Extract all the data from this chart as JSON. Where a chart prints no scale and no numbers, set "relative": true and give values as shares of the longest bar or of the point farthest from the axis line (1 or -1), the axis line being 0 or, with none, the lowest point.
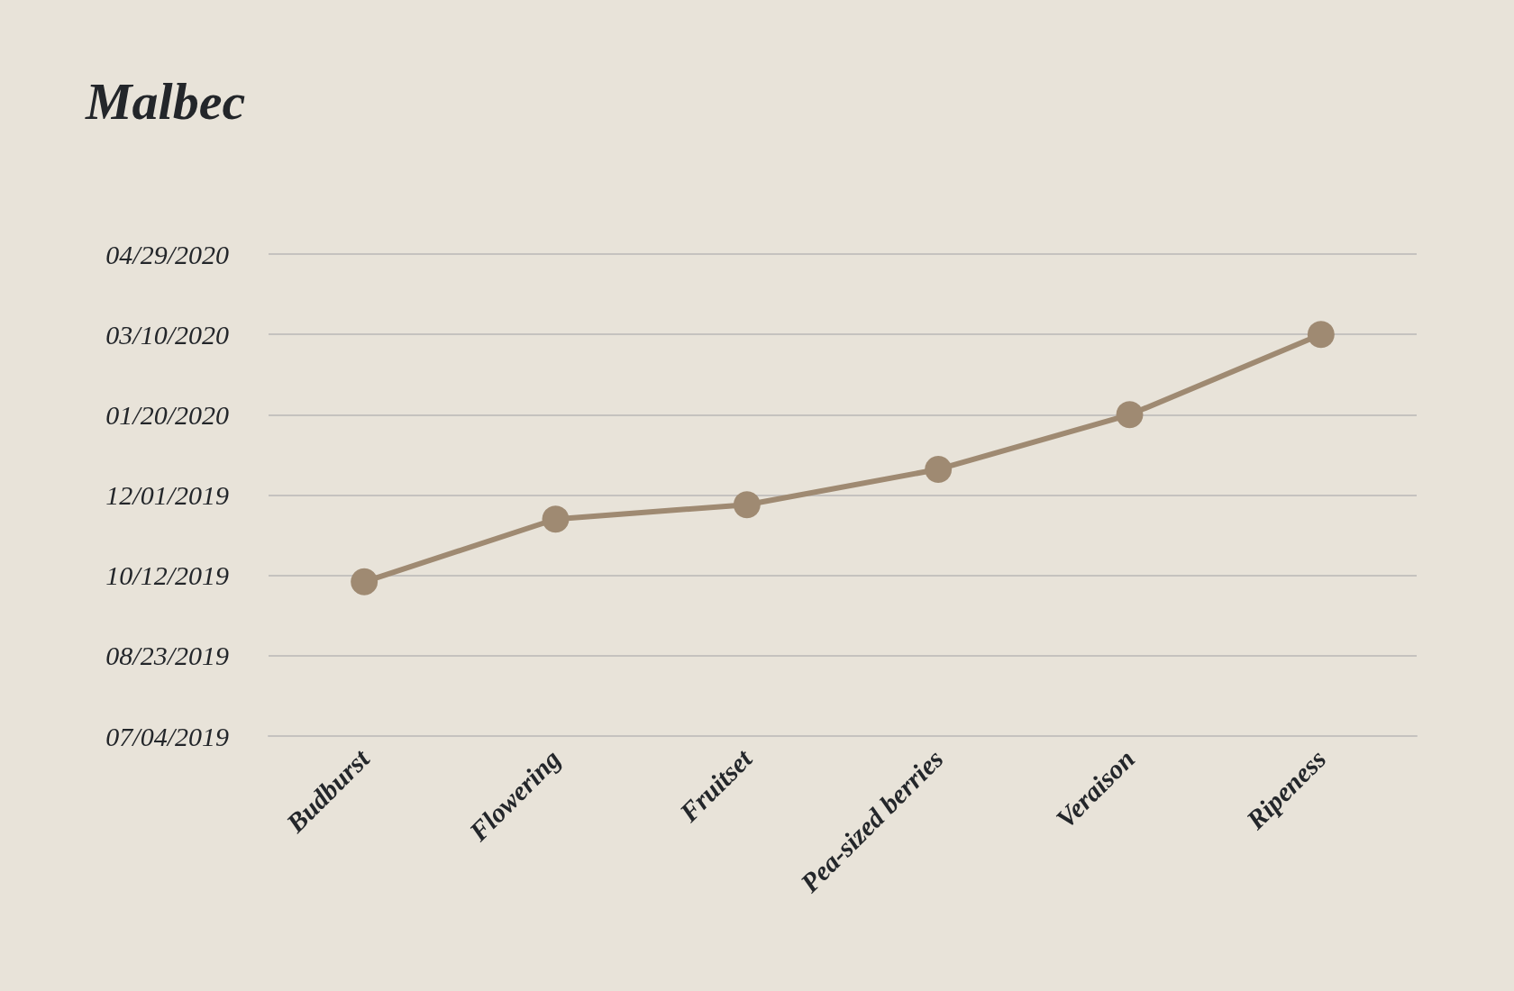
{
  "chart_data": {
    "type": "line",
    "title": "Malbec",
    "relative": true,
    "categories": [
      "Budburst",
      "Flowering",
      "Fruitset",
      "Pea-sized berries",
      "Veraison",
      "Ripeness"
    ],
    "series": [
      {
        "color": "#9f8a72",
        "values": [
          0.384,
          0.54,
          0.576,
          0.664,
          0.8,
          1
        ]
      }
    ],
    "ref_lines": [
      {
        "axis": "y",
        "value": 0,
        "color": "#c5c2bf"
      },
      {
        "axis": "y",
        "value": 0.2,
        "color": "#c5c2bf"
      },
      {
        "axis": "y",
        "value": 0.4,
        "color": "#c5c2bf"
      },
      {
        "axis": "y",
        "value": 0.6,
        "color": "#c5c2bf"
      },
      {
        "axis": "y",
        "value": 0.8,
        "color": "#c5c2bf"
      },
      {
        "axis": "y",
        "value": 1,
        "color": "#c5c2bf"
      },
      {
        "axis": "y",
        "value": 1.2,
        "color": "#c5c2bf"
      }
    ],
    "annotations": [
      "07/04/2019",
      "08/23/2019",
      "10/12/2019",
      "12/01/2019",
      "01/20/2020",
      "03/10/2020",
      "04/29/2020"
    ],
    "marker": "circle",
    "line_style": "solid"
  }
}
